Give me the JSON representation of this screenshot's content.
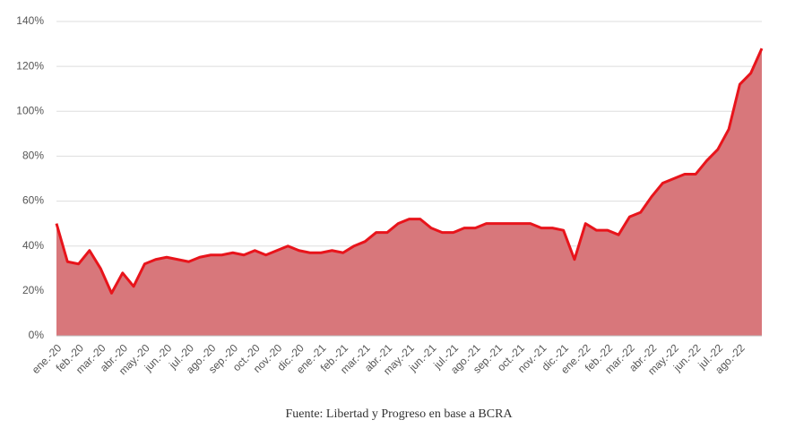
{
  "chart_data": {
    "type": "area",
    "caption": "Fuente: Libertad y Progreso en base a BCRA",
    "categories": [
      "ene.-20",
      null,
      "feb.-20",
      null,
      "mar.-20",
      null,
      "abr.-20",
      null,
      "may.-20",
      null,
      "jun.-20",
      null,
      "jul.-20",
      null,
      "ago.-20",
      null,
      "sep.-20",
      null,
      "oct.-20",
      null,
      "nov.-20",
      null,
      "dic.-20",
      null,
      "ene.-21",
      null,
      "feb.-21",
      null,
      "mar.-21",
      null,
      "abr.-21",
      null,
      "may.-21",
      null,
      "jun.-21",
      null,
      "jul.-21",
      null,
      "ago.-21",
      null,
      "sep.-21",
      null,
      "oct.-21",
      null,
      "nov.-21",
      null,
      "dic.-21",
      null,
      "ene.-22",
      null,
      "feb.-22",
      null,
      "mar.-22",
      null,
      "abr.-22",
      null,
      "may.-22",
      null,
      "jun.-22",
      null,
      "jul.-22",
      null,
      "ago.-22",
      null,
      null
    ],
    "values": [
      50,
      33,
      32,
      38,
      30,
      19,
      28,
      22,
      32,
      34,
      35,
      34,
      33,
      35,
      36,
      36,
      37,
      36,
      38,
      36,
      38,
      40,
      38,
      37,
      37,
      38,
      37,
      40,
      42,
      46,
      46,
      50,
      52,
      52,
      48,
      46,
      46,
      48,
      48,
      50,
      50,
      50,
      50,
      50,
      48,
      48,
      47,
      34,
      50,
      47,
      47,
      45,
      53,
      55,
      62,
      68,
      70,
      72,
      72,
      78,
      83,
      92,
      112,
      117,
      128
    ],
    "line_color": "#e8141b",
    "fill_color": "#d8777b",
    "ylim": [
      0,
      140
    ],
    "yticks": [
      {
        "value": 0,
        "label": "0%"
      },
      {
        "value": 20,
        "label": "20%"
      },
      {
        "value": 40,
        "label": "40%"
      },
      {
        "value": 60,
        "label": "60%"
      },
      {
        "value": 80,
        "label": "80%"
      },
      {
        "value": 100,
        "label": "100%"
      },
      {
        "value": 120,
        "label": "120%"
      },
      {
        "value": 140,
        "label": "140%"
      }
    ],
    "grid": true
  }
}
